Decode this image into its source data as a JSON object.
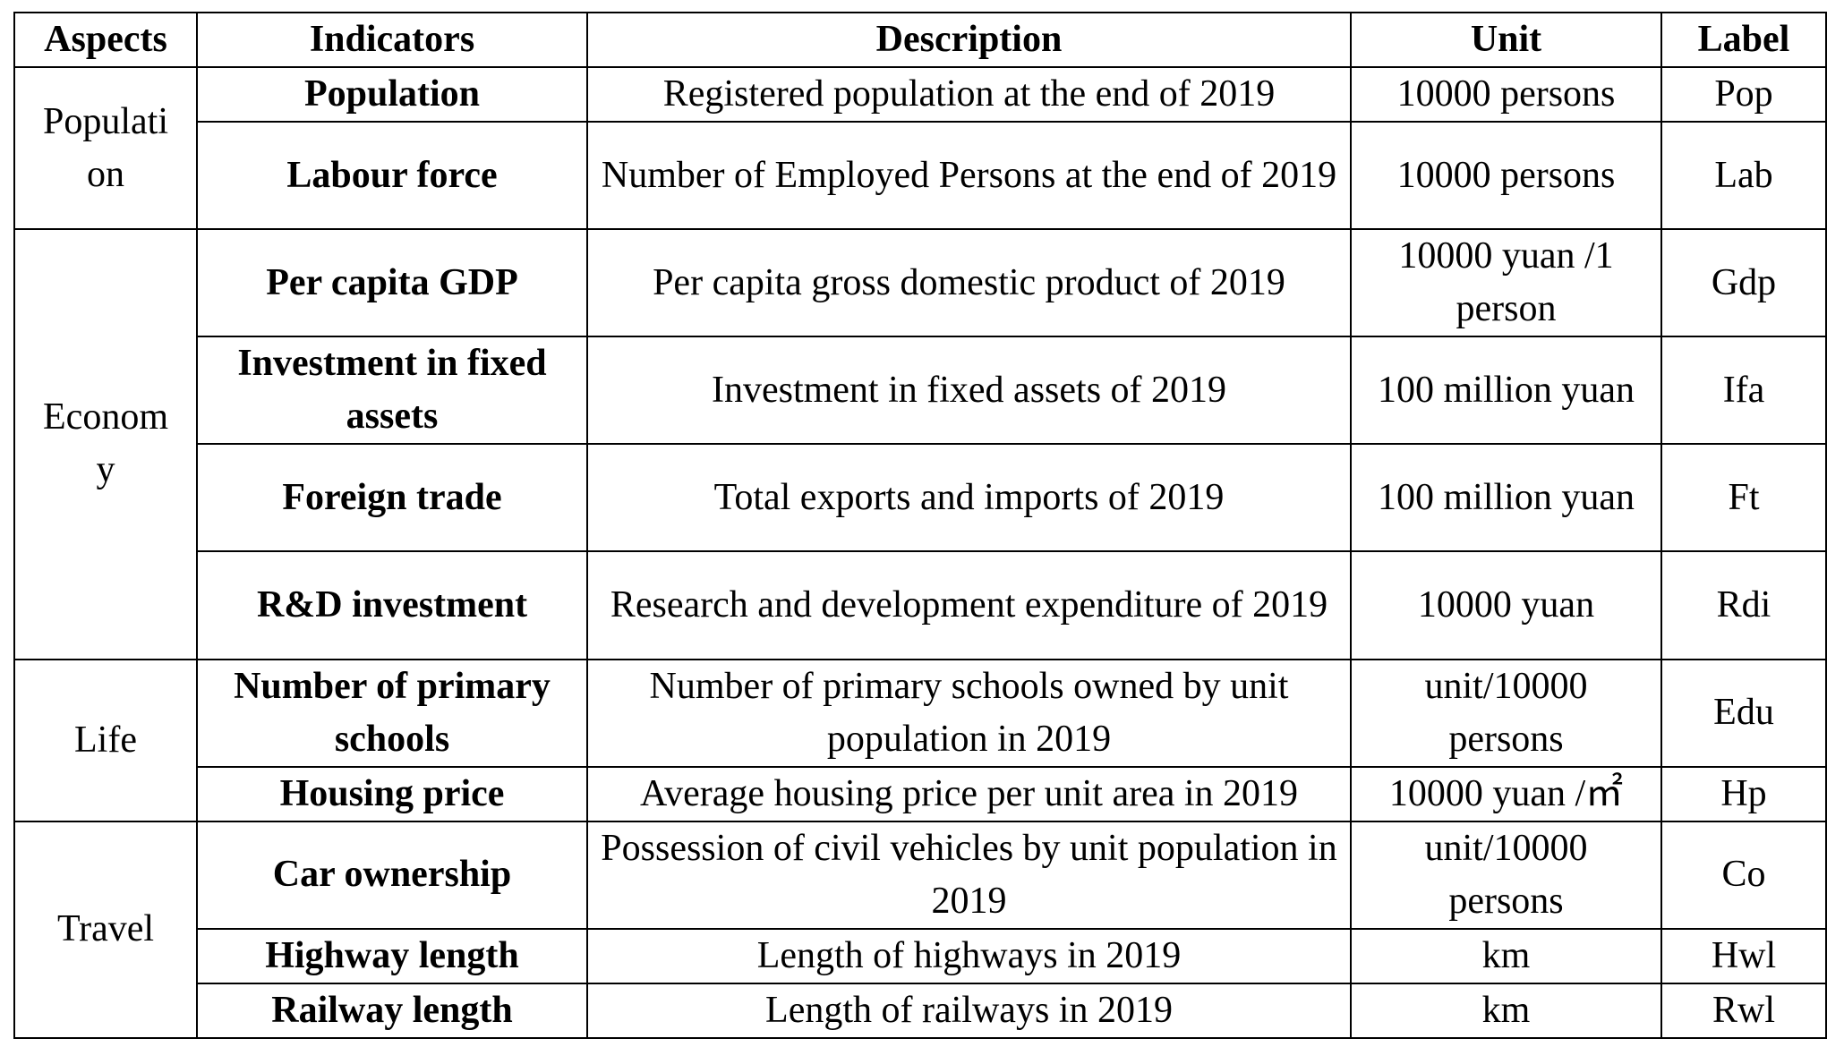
{
  "headers": {
    "aspects": "Aspects",
    "indicators": "Indicators",
    "description": "Description",
    "unit": "Unit",
    "label": "Label"
  },
  "aspects": {
    "population": "Populati on",
    "economy": "Econom y",
    "life": "Life",
    "travel": "Travel"
  },
  "rows": [
    {
      "indicator": "Population",
      "description": "Registered population at the end of 2019",
      "unit": "10000 persons",
      "label": "Pop"
    },
    {
      "indicator": "Labour force",
      "description": "Number of Employed Persons at the end of 2019",
      "unit": "10000 persons",
      "label": "Lab"
    },
    {
      "indicator": "Per capita GDP",
      "description": "Per capita gross domestic product of 2019",
      "unit": "10000 yuan /1 person",
      "label": "Gdp"
    },
    {
      "indicator": "Investment in fixed assets",
      "description": "Investment in fixed assets of 2019",
      "unit": "100 million yuan",
      "label": "Ifa"
    },
    {
      "indicator": "Foreign trade",
      "description": "Total exports and imports of 2019",
      "unit": "100 million yuan",
      "label": "Ft"
    },
    {
      "indicator": "R&D investment",
      "description": "Research and development expenditure of 2019",
      "unit": "10000 yuan",
      "label": "Rdi"
    },
    {
      "indicator": "Number of primary schools",
      "description": "Number of primary schools owned by unit population in 2019",
      "unit": "unit/10000 persons",
      "label": "Edu"
    },
    {
      "indicator": "Housing price",
      "description": "Average housing price per unit area in 2019",
      "unit": "10000 yuan /㎡",
      "label": "Hp"
    },
    {
      "indicator": "Car ownership",
      "description": "Possession of civil vehicles by unit population in 2019",
      "unit": "unit/10000 persons",
      "label": "Co"
    },
    {
      "indicator": "Highway length",
      "description": "Length of highways in 2019",
      "unit": "km",
      "label": "Hwl"
    },
    {
      "indicator": "Railway length",
      "description": "Length of railways in 2019",
      "unit": "km",
      "label": "Rwl"
    }
  ]
}
